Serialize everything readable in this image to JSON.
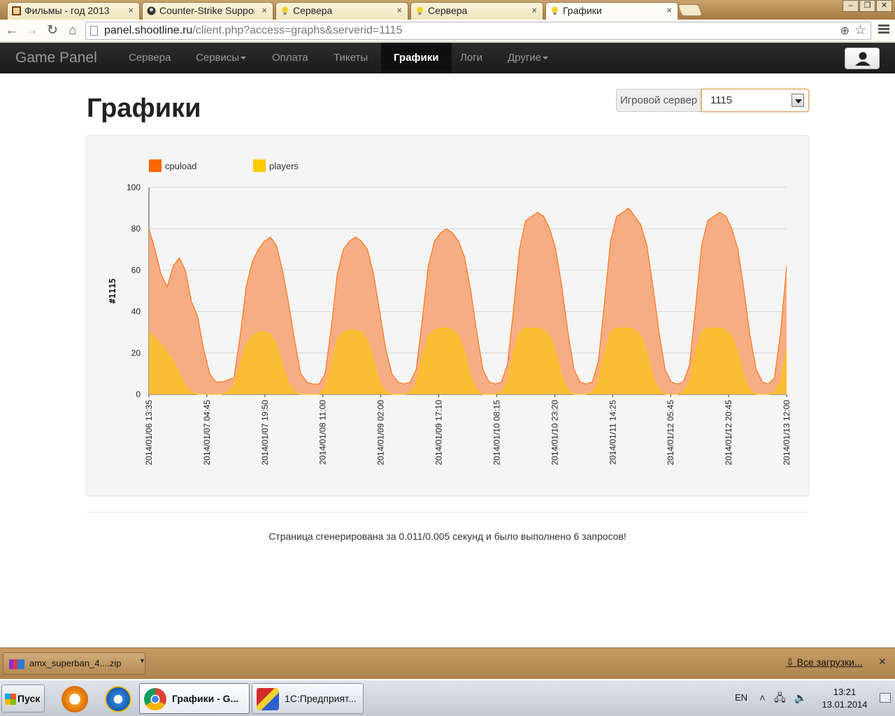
{
  "browser": {
    "tabs": [
      {
        "title": "Фильмы - год 2013",
        "close": "×"
      },
      {
        "title": "Counter-Strike Suppor",
        "close": "×"
      },
      {
        "title": "Сервера",
        "close": "×"
      },
      {
        "title": "Сервера",
        "close": "×"
      },
      {
        "title": "Графики",
        "close": "×"
      }
    ],
    "url_host": "panel.shootline.ru",
    "url_path": "/client.php?access=graphs&serverid=1115"
  },
  "navbar": {
    "brand": "Game Panel",
    "items": [
      {
        "label": "Сервера"
      },
      {
        "label": "Сервисы",
        "dropdown": true
      },
      {
        "label": "Оплата"
      },
      {
        "label": "Тикеты"
      },
      {
        "label": "Графики",
        "active": true
      },
      {
        "label": "Логи"
      },
      {
        "label": "Другие",
        "dropdown": true
      }
    ]
  },
  "page": {
    "title": "Графики",
    "server_label": "Игровой сервер",
    "server_value": "1115",
    "footer": "Страница сгенерирована за 0.011/0.005 секунд и было выполнено 6 запросов!"
  },
  "chart_data": {
    "type": "area",
    "ylabel": "#1115",
    "ylim": [
      0,
      100
    ],
    "yticks": [
      0,
      20,
      40,
      60,
      80,
      100
    ],
    "grid": true,
    "legend_position": "top-left",
    "legend": [
      {
        "name": "cpuload",
        "color": "#ff6600"
      },
      {
        "name": "players",
        "color": "#ffcc00"
      }
    ],
    "x_tick_labels": [
      "2014/01/06 13:35",
      "2014/01/07 04:45",
      "2014/01/07 19:50",
      "2014/01/08 11:00",
      "2014/01/09 02:00",
      "2014/01/09 17:10",
      "2014/01/10 08:15",
      "2014/01/10 23:20",
      "2014/01/11 14:25",
      "2014/01/12 05:45",
      "2014/01/12 20:45",
      "2014/01/13 12:00"
    ],
    "series": [
      {
        "name": "cpuload",
        "color": "#ff6600",
        "values": [
          80,
          70,
          58,
          52,
          62,
          66,
          60,
          45,
          38,
          22,
          10,
          6,
          6,
          7,
          8,
          28,
          52,
          64,
          70,
          74,
          76,
          72,
          60,
          44,
          26,
          10,
          6,
          5,
          5,
          10,
          32,
          58,
          70,
          74,
          76,
          74,
          70,
          58,
          40,
          22,
          10,
          6,
          5,
          6,
          12,
          36,
          62,
          74,
          78,
          80,
          78,
          74,
          66,
          50,
          30,
          12,
          6,
          5,
          6,
          14,
          40,
          70,
          84,
          86,
          88,
          86,
          80,
          70,
          52,
          30,
          12,
          6,
          5,
          6,
          16,
          44,
          74,
          86,
          88,
          90,
          86,
          82,
          72,
          52,
          30,
          12,
          6,
          5,
          6,
          14,
          42,
          72,
          84,
          86,
          88,
          86,
          80,
          70,
          50,
          28,
          12,
          6,
          5,
          8,
          30,
          62
        ]
      },
      {
        "name": "players",
        "color": "#ffcc00",
        "values": [
          30,
          27,
          24,
          20,
          16,
          10,
          4,
          1,
          0,
          0,
          0,
          0,
          0,
          1,
          4,
          14,
          24,
          28,
          30,
          30,
          29,
          24,
          14,
          5,
          1,
          0,
          0,
          0,
          0,
          3,
          14,
          26,
          30,
          31,
          31,
          30,
          26,
          16,
          6,
          1,
          0,
          0,
          0,
          1,
          5,
          18,
          28,
          31,
          32,
          32,
          31,
          28,
          20,
          8,
          2,
          0,
          0,
          0,
          1,
          6,
          20,
          30,
          32,
          32,
          32,
          31,
          28,
          20,
          8,
          2,
          0,
          0,
          0,
          1,
          6,
          20,
          30,
          32,
          32,
          32,
          31,
          28,
          20,
          8,
          2,
          0,
          0,
          0,
          1,
          6,
          20,
          30,
          32,
          32,
          32,
          31,
          28,
          20,
          8,
          2,
          0,
          0,
          0,
          1,
          6,
          22
        ]
      }
    ]
  },
  "downloads": {
    "item": "amx_superban_4....zip",
    "all_link": "Все загрузки..."
  },
  "taskbar": {
    "start": "Пуск",
    "tasks": [
      {
        "label": "Графики - G..."
      },
      {
        "label": "1С:Предприят..."
      }
    ],
    "lang": "EN",
    "time": "13:21",
    "date": "13.01.2014"
  }
}
